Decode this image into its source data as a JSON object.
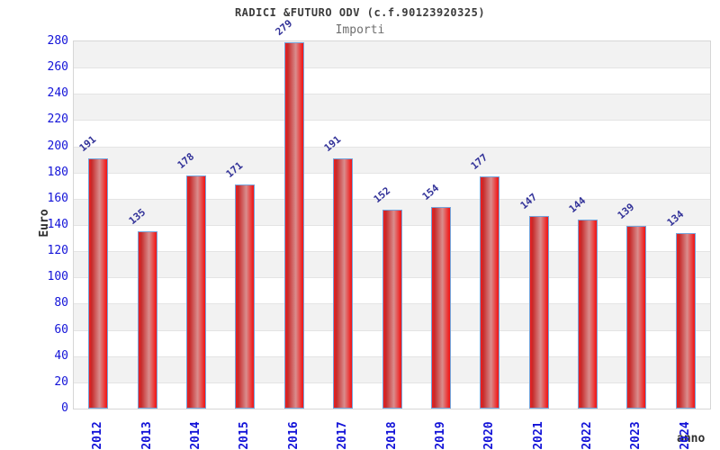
{
  "chart": {
    "title": "RADICI &FUTURO ODV (c.f.90123920325)",
    "subtitle": "Importi",
    "ylabel": "Euro",
    "xlabel": "anno"
  },
  "chart_data": {
    "type": "bar",
    "title": "RADICI &FUTURO ODV (c.f.90123920325)",
    "subtitle": "Importi",
    "xlabel": "anno",
    "ylabel": "Euro",
    "categories": [
      "2012",
      "2013",
      "2014",
      "2015",
      "2016",
      "2017",
      "2018",
      "2019",
      "2020",
      "2021",
      "2022",
      "2023",
      "2024"
    ],
    "values": [
      191,
      135,
      178,
      171,
      279,
      191,
      152,
      154,
      177,
      147,
      144,
      139,
      134
    ],
    "ylim": [
      0,
      280
    ],
    "yticks": [
      0,
      20,
      40,
      60,
      80,
      100,
      120,
      140,
      160,
      180,
      200,
      220,
      240,
      260,
      280
    ],
    "grid": "horizontal-bands-alternating",
    "legend": "none",
    "value_labels": "above-bars-rotated",
    "xtick_rotation": -90
  },
  "colors": {
    "background": "#ffffff",
    "band_gray": "#f2f2f2",
    "band_white": "#ffffff",
    "grid_line": "#e4e4e4",
    "plot_border": "#d6d6d6",
    "bar_fill_main": "#f21d1d",
    "bar_fill_dark": "#c62a2a",
    "bar_fill_highlight": "#d98d8d",
    "bar_border": "#74a3da",
    "axis_tick_blue": "#1313d8",
    "value_label_navy": "#333399",
    "title_color": "#3b3b3b",
    "subtitle_color": "#6e6e6e",
    "axis_title_color": "#2e2e2e"
  }
}
